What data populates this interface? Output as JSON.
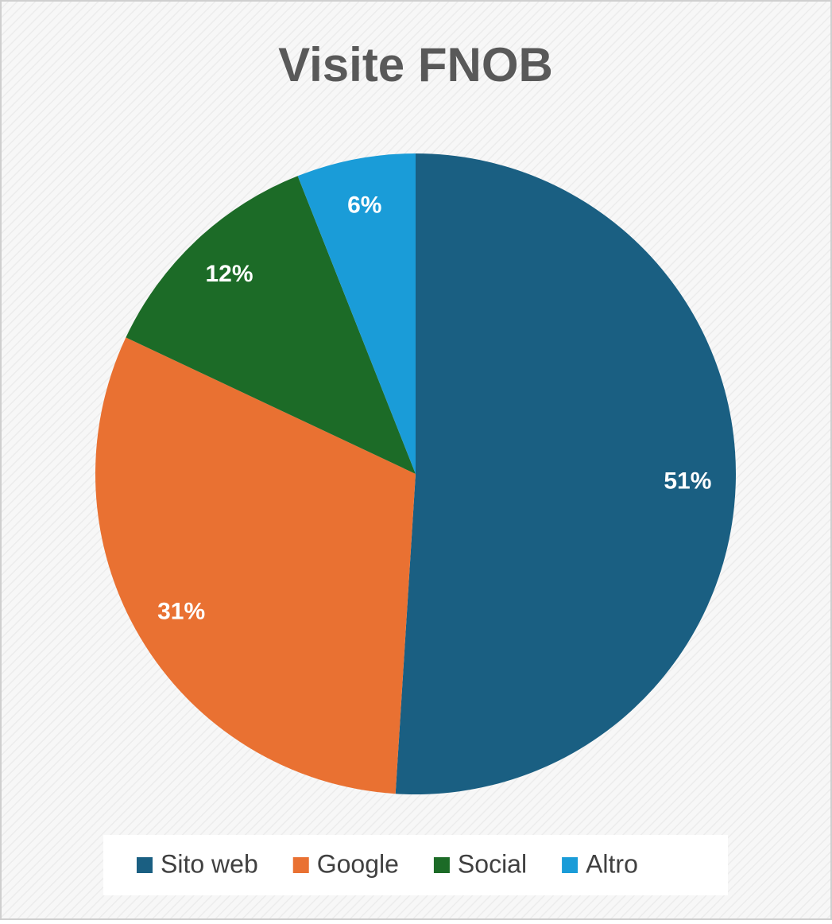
{
  "chart_data": {
    "type": "pie",
    "title": "Visite FNOB",
    "categories": [
      "Sito web",
      "Google",
      "Social",
      "Altro"
    ],
    "values": [
      51,
      31,
      12,
      6
    ],
    "value_labels": [
      "51%",
      "31%",
      "12%",
      "6%"
    ],
    "colors": [
      "#1a5f82",
      "#e97132",
      "#1c6b27",
      "#1a9cd8"
    ]
  }
}
